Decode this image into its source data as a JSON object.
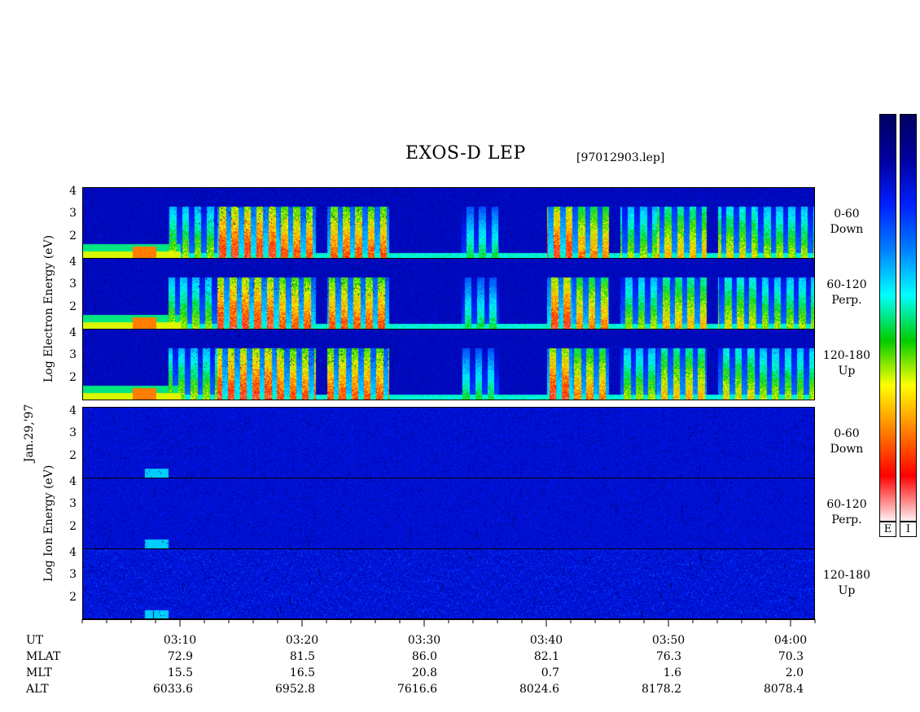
{
  "header": {
    "title": "EXOS-D LEP",
    "file": "[97012903.lep]"
  },
  "date_label": "Jan.29,'97",
  "colorbar": {
    "labels": [
      "E",
      "I"
    ],
    "stops": [
      "#fff0f0",
      "#ff0000",
      "#ff8000",
      "#ffff00",
      "#00cc00",
      "#00ffff",
      "#0080ff",
      "#0020ff",
      "#0000a0",
      "#000060"
    ]
  },
  "chart_data": {
    "type": "heatmap",
    "title": "EXOS-D LEP",
    "ytick_labels": [
      "4",
      "3",
      "2"
    ],
    "panel_groups": [
      {
        "species": "electron",
        "ylabel": [
          "Log",
          "Electron",
          "Energy",
          "(eV)"
        ],
        "panels": [
          {
            "range_line1": "0-60",
            "range_line2": "Down"
          },
          {
            "range_line1": "60-120",
            "range_line2": "Perp."
          },
          {
            "range_line1": "120-180",
            "range_line2": "Up"
          }
        ]
      },
      {
        "species": "ion",
        "ylabel": [
          "Log",
          "Ion",
          "Energy",
          "(eV)"
        ],
        "panels": [
          {
            "range_line1": "0-60",
            "range_line2": "Down"
          },
          {
            "range_line1": "60-120",
            "range_line2": "Perp."
          },
          {
            "range_line1": "120-180",
            "range_line2": "Up"
          }
        ]
      }
    ],
    "ylim": [
      1,
      4.2
    ],
    "x_range": [
      "03:02",
      "04:02"
    ],
    "row_labels": [
      "UT",
      "MLAT",
      "MLT",
      "ALT"
    ],
    "x_times": [
      "03:10",
      "03:20",
      "03:30",
      "03:40",
      "03:50",
      "04:00"
    ],
    "MLAT": [
      "72.9",
      "81.5",
      "86.0",
      "82.1",
      "76.3",
      "70.3"
    ],
    "MLT": [
      "15.5",
      "16.5",
      "20.8",
      "0.7",
      "1.6",
      "2.0"
    ],
    "ALT": [
      "6033.6",
      "6952.8",
      "7616.6",
      "8024.6",
      "8178.2",
      "8078.4"
    ]
  }
}
